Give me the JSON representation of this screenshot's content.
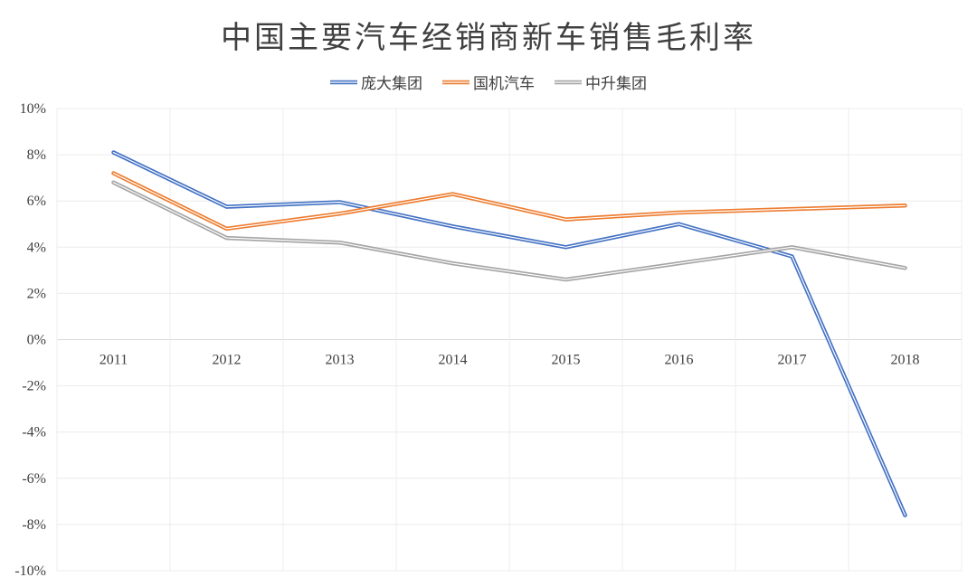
{
  "chart_data": {
    "type": "line",
    "title": "中国主要汽车经销商新车销售毛利率",
    "categories": [
      "2011",
      "2012",
      "2013",
      "2014",
      "2015",
      "2016",
      "2017",
      "2018"
    ],
    "series": [
      {
        "name": "庞大集团",
        "color": "#4472C4",
        "values": [
          8.1,
          5.75,
          5.95,
          4.9,
          4.0,
          5.0,
          3.6,
          -7.6
        ]
      },
      {
        "name": "国机汽车",
        "color": "#ED7D31",
        "values": [
          7.2,
          4.8,
          5.45,
          6.3,
          5.2,
          5.5,
          5.65,
          5.8
        ]
      },
      {
        "name": "中升集团",
        "color": "#A5A5A5",
        "values": [
          6.8,
          4.4,
          4.2,
          3.3,
          2.6,
          3.3,
          4.0,
          3.1
        ]
      }
    ],
    "ylim": [
      -10,
      10
    ],
    "ytick_step": 2,
    "ytick_labels": [
      "10%",
      "8%",
      "6%",
      "4%",
      "2%",
      "0%",
      "-2%",
      "-4%",
      "-6%",
      "-8%",
      "-10%"
    ],
    "legend_position": "top",
    "grid": true
  }
}
